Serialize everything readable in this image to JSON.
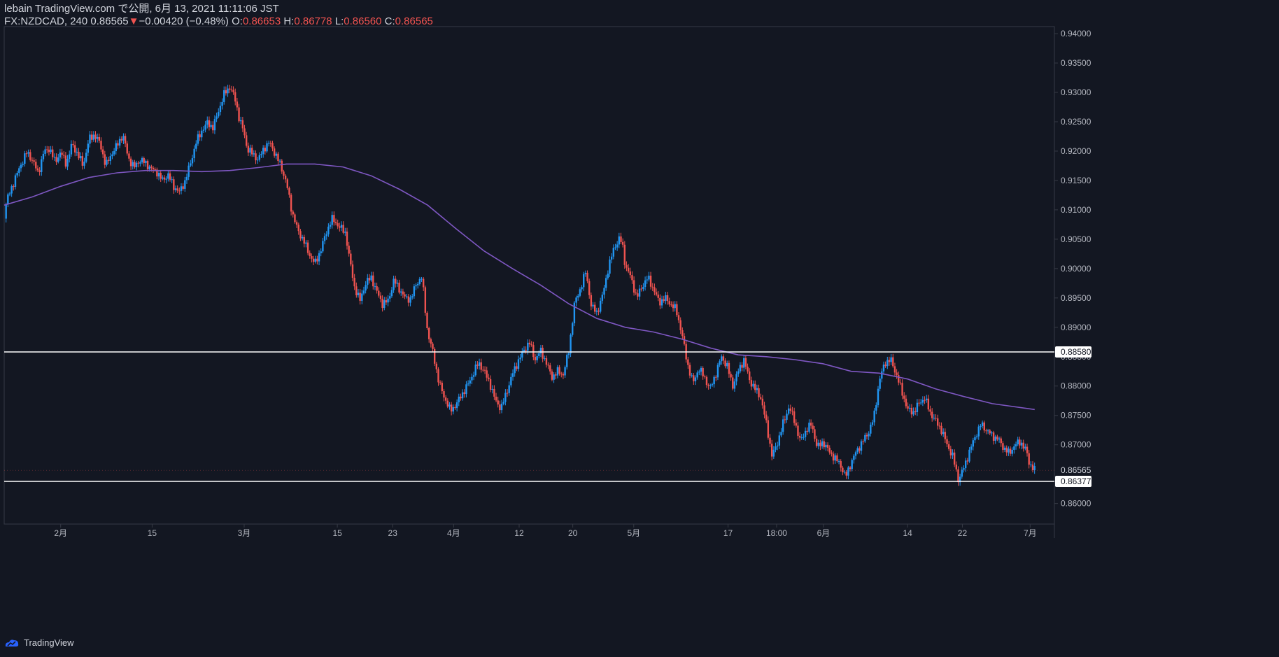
{
  "header": {
    "published_line": "lebain TradingView.com で公開, 6月 13, 2021 11:11:06 JST",
    "symbol": "FX:NZDCAD",
    "interval": "240",
    "last": "0.86565",
    "change_arrow": "▼",
    "change": "−0.00420 (−0.48%)",
    "o_label": "O:",
    "o_value": "0.86653",
    "h_label": "H:",
    "h_value": "0.86778",
    "l_label": "L:",
    "l_value": "0.86560",
    "c_label": "C:",
    "c_value": "0.86565"
  },
  "footer": {
    "brand": "TradingView"
  },
  "chart_data": {
    "type": "candlestick",
    "title": "",
    "y_ticks": [
      "0.86000",
      "0.86500",
      "0.87000",
      "0.87500",
      "0.88000",
      "0.88500",
      "0.89000",
      "0.89500",
      "0.90000",
      "0.90500",
      "0.91000",
      "0.91500",
      "0.92000",
      "0.92500",
      "0.93000",
      "0.93500",
      "0.94000"
    ],
    "ylim": [
      0.8565,
      0.9412
    ],
    "x_labels": [
      "2月",
      "15",
      "3月",
      "15",
      "23",
      "4月",
      "12",
      "20",
      "5月",
      "17",
      "18:00",
      "6月",
      "14",
      "22",
      "7月"
    ],
    "x_label_pos": [
      0.0,
      16.2,
      32.5,
      49.0,
      58.8,
      69.6,
      81.2,
      90.7,
      101.5,
      118.2,
      126.8,
      135.1,
      150.0,
      159.7,
      171.7
    ],
    "x_domain": [
      -10.0,
      176.0
    ],
    "price_path": [
      [
        -10.0,
        0.9085
      ],
      [
        -9.6,
        0.9115
      ],
      [
        -8.0,
        0.9155
      ],
      [
        -7.0,
        0.9178
      ],
      [
        -6.0,
        0.9198
      ],
      [
        -5.0,
        0.9185
      ],
      [
        -4.0,
        0.9162
      ],
      [
        -3.0,
        0.9198
      ],
      [
        -2.0,
        0.9205
      ],
      [
        -1.0,
        0.9182
      ],
      [
        0.0,
        0.9198
      ],
      [
        1.0,
        0.9178
      ],
      [
        2.0,
        0.9212
      ],
      [
        3.0,
        0.9195
      ],
      [
        4.0,
        0.9175
      ],
      [
        5.0,
        0.922
      ],
      [
        6.0,
        0.9228
      ],
      [
        7.0,
        0.9212
      ],
      [
        8.0,
        0.9175
      ],
      [
        9.0,
        0.9195
      ],
      [
        10.0,
        0.921
      ],
      [
        11.0,
        0.9228
      ],
      [
        12.0,
        0.9188
      ],
      [
        13.0,
        0.9172
      ],
      [
        14.0,
        0.9185
      ],
      [
        15.0,
        0.918
      ],
      [
        16.0,
        0.917
      ],
      [
        17.0,
        0.9165
      ],
      [
        18.0,
        0.915
      ],
      [
        19.0,
        0.916
      ],
      [
        20.0,
        0.914
      ],
      [
        21.0,
        0.913
      ],
      [
        22.0,
        0.9148
      ],
      [
        23.0,
        0.918
      ],
      [
        24.0,
        0.9215
      ],
      [
        25.0,
        0.9235
      ],
      [
        26.0,
        0.9248
      ],
      [
        27.0,
        0.924
      ],
      [
        28.0,
        0.927
      ],
      [
        29.0,
        0.9298
      ],
      [
        30.0,
        0.931
      ],
      [
        31.0,
        0.9285
      ],
      [
        31.5,
        0.926
      ],
      [
        32.5,
        0.923
      ],
      [
        33.0,
        0.9205
      ],
      [
        34.0,
        0.9195
      ],
      [
        35.0,
        0.9185
      ],
      [
        36.0,
        0.9205
      ],
      [
        37.0,
        0.9215
      ],
      [
        38.0,
        0.9195
      ],
      [
        39.0,
        0.9175
      ],
      [
        40.0,
        0.9145
      ],
      [
        40.5,
        0.912
      ],
      [
        41.0,
        0.9095
      ],
      [
        42.0,
        0.9065
      ],
      [
        43.0,
        0.9048
      ],
      [
        44.0,
        0.9025
      ],
      [
        45.0,
        0.9008
      ],
      [
        46.0,
        0.903
      ],
      [
        47.0,
        0.906
      ],
      [
        48.0,
        0.9085
      ],
      [
        49.0,
        0.9075
      ],
      [
        50.0,
        0.9065
      ],
      [
        50.5,
        0.906
      ],
      [
        51.0,
        0.9025
      ],
      [
        52.0,
        0.897
      ],
      [
        53.0,
        0.8945
      ],
      [
        54.0,
        0.8975
      ],
      [
        55.0,
        0.8985
      ],
      [
        56.0,
        0.896
      ],
      [
        57.0,
        0.894
      ],
      [
        58.0,
        0.8945
      ],
      [
        59.0,
        0.898
      ],
      [
        60.0,
        0.8965
      ],
      [
        61.0,
        0.895
      ],
      [
        62.0,
        0.8948
      ],
      [
        63.0,
        0.8975
      ],
      [
        64.0,
        0.8985
      ],
      [
        65.0,
        0.889
      ],
      [
        66.0,
        0.8855
      ],
      [
        67.0,
        0.8805
      ],
      [
        68.0,
        0.878
      ],
      [
        69.0,
        0.8758
      ],
      [
        70.0,
        0.8768
      ],
      [
        71.0,
        0.8785
      ],
      [
        72.0,
        0.88
      ],
      [
        73.0,
        0.882
      ],
      [
        74.0,
        0.884
      ],
      [
        75.0,
        0.8825
      ],
      [
        76.0,
        0.8805
      ],
      [
        77.0,
        0.8775
      ],
      [
        78.0,
        0.8762
      ],
      [
        79.0,
        0.879
      ],
      [
        80.0,
        0.882
      ],
      [
        81.0,
        0.8842
      ],
      [
        82.0,
        0.886
      ],
      [
        83.0,
        0.8875
      ],
      [
        84.0,
        0.8845
      ],
      [
        85.0,
        0.886
      ],
      [
        86.0,
        0.884
      ],
      [
        87.0,
        0.8815
      ],
      [
        88.0,
        0.8825
      ],
      [
        89.0,
        0.882
      ],
      [
        90.0,
        0.886
      ],
      [
        91.0,
        0.894
      ],
      [
        92.0,
        0.8965
      ],
      [
        93.0,
        0.8995
      ],
      [
        94.0,
        0.8935
      ],
      [
        95.0,
        0.8925
      ],
      [
        96.0,
        0.8955
      ],
      [
        97.0,
        0.9002
      ],
      [
        98.0,
        0.9035
      ],
      [
        99.0,
        0.9052
      ],
      [
        99.5,
        0.904
      ],
      [
        100.0,
        0.9005
      ],
      [
        101.0,
        0.8985
      ],
      [
        102.0,
        0.895
      ],
      [
        103.0,
        0.897
      ],
      [
        104.0,
        0.8985
      ],
      [
        105.0,
        0.8965
      ],
      [
        106.0,
        0.8942
      ],
      [
        107.0,
        0.895
      ],
      [
        108.0,
        0.894
      ],
      [
        109.0,
        0.893
      ],
      [
        110.0,
        0.889
      ],
      [
        111.0,
        0.8838
      ],
      [
        112.0,
        0.8805
      ],
      [
        113.0,
        0.883
      ],
      [
        114.0,
        0.8815
      ],
      [
        115.0,
        0.8795
      ],
      [
        116.0,
        0.882
      ],
      [
        117.0,
        0.885
      ],
      [
        118.0,
        0.8835
      ],
      [
        119.0,
        0.88
      ],
      [
        120.0,
        0.8825
      ],
      [
        121.0,
        0.8845
      ],
      [
        122.0,
        0.881
      ],
      [
        123.0,
        0.8795
      ],
      [
        124.0,
        0.878
      ],
      [
        125.0,
        0.8735
      ],
      [
        126.0,
        0.868
      ],
      [
        127.0,
        0.8705
      ],
      [
        128.0,
        0.8738
      ],
      [
        129.0,
        0.8765
      ],
      [
        130.0,
        0.874
      ],
      [
        131.0,
        0.8705
      ],
      [
        132.0,
        0.8725
      ],
      [
        133.0,
        0.8735
      ],
      [
        134.0,
        0.8695
      ],
      [
        135.0,
        0.8705
      ],
      [
        136.0,
        0.869
      ],
      [
        137.0,
        0.8678
      ],
      [
        138.0,
        0.8668
      ],
      [
        139.0,
        0.8645
      ],
      [
        140.0,
        0.867
      ],
      [
        141.0,
        0.869
      ],
      [
        142.0,
        0.8705
      ],
      [
        143.0,
        0.872
      ],
      [
        144.0,
        0.8745
      ],
      [
        145.0,
        0.881
      ],
      [
        146.0,
        0.884
      ],
      [
        147.0,
        0.8845
      ],
      [
        148.0,
        0.882
      ],
      [
        149.0,
        0.879
      ],
      [
        150.0,
        0.876
      ],
      [
        151.0,
        0.8755
      ],
      [
        152.0,
        0.877
      ],
      [
        153.0,
        0.878
      ],
      [
        154.0,
        0.8755
      ],
      [
        155.0,
        0.874
      ],
      [
        156.0,
        0.8725
      ],
      [
        157.0,
        0.87
      ],
      [
        158.0,
        0.868
      ],
      [
        159.0,
        0.864
      ],
      [
        160.0,
        0.8662
      ],
      [
        161.0,
        0.869
      ],
      [
        162.0,
        0.8715
      ],
      [
        163.0,
        0.8735
      ],
      [
        164.0,
        0.8725
      ],
      [
        165.0,
        0.8715
      ],
      [
        166.0,
        0.871
      ],
      [
        167.0,
        0.8695
      ],
      [
        168.0,
        0.8685
      ],
      [
        169.0,
        0.87
      ],
      [
        170.0,
        0.8705
      ],
      [
        171.0,
        0.869
      ],
      [
        171.5,
        0.867
      ],
      [
        172.5,
        0.86565
      ]
    ],
    "moving_average": [
      [
        -10.0,
        0.9108
      ],
      [
        -5.0,
        0.9122
      ],
      [
        0.0,
        0.914
      ],
      [
        5.0,
        0.9155
      ],
      [
        10.0,
        0.9163
      ],
      [
        15.0,
        0.9167
      ],
      [
        20.0,
        0.9167
      ],
      [
        25.0,
        0.9165
      ],
      [
        30.0,
        0.9167
      ],
      [
        35.0,
        0.9172
      ],
      [
        40.0,
        0.9178
      ],
      [
        45.0,
        0.9178
      ],
      [
        50.0,
        0.9173
      ],
      [
        55.0,
        0.9158
      ],
      [
        60.0,
        0.9135
      ],
      [
        65.0,
        0.9108
      ],
      [
        70.0,
        0.9068
      ],
      [
        75.0,
        0.903
      ],
      [
        80.0,
        0.9
      ],
      [
        85.0,
        0.8972
      ],
      [
        90.0,
        0.894
      ],
      [
        95.0,
        0.8915
      ],
      [
        100.0,
        0.89
      ],
      [
        105.0,
        0.8892
      ],
      [
        110.0,
        0.888
      ],
      [
        115.0,
        0.8865
      ],
      [
        120.0,
        0.8853
      ],
      [
        125.0,
        0.885
      ],
      [
        130.0,
        0.8845
      ],
      [
        135.0,
        0.8838
      ],
      [
        140.0,
        0.8825
      ],
      [
        145.0,
        0.8822
      ],
      [
        150.0,
        0.8812
      ],
      [
        155.0,
        0.8795
      ],
      [
        160.0,
        0.8782
      ],
      [
        165.0,
        0.877
      ],
      [
        172.5,
        0.876
      ]
    ],
    "horizontal_lines": [
      {
        "value": 0.8858,
        "label": "0.88580"
      },
      {
        "value": 0.86377,
        "label": "0.86377"
      }
    ],
    "last_price": {
      "value": 0.86565,
      "label": "0.86565"
    },
    "colors": {
      "background": "#131722",
      "up": "#2196f3",
      "down": "#ef5350",
      "ma": "#7e57c2",
      "level": "#ffffff",
      "grid": "#363a45",
      "text": "#b2b5be"
    }
  }
}
